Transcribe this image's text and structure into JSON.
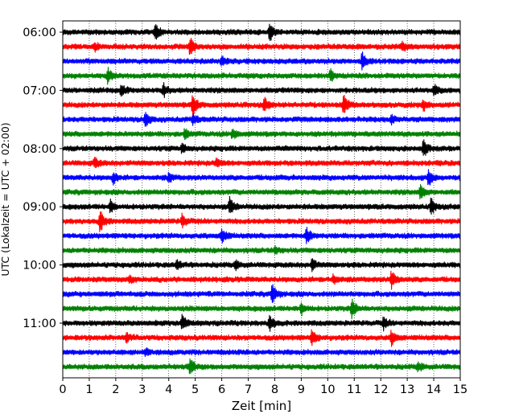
{
  "chart_data": {
    "type": "line",
    "title": "",
    "xlabel": "Zeit  [min]",
    "ylabel": "UTC (Lokalzeit = UTC + 02:00)",
    "xlim": [
      0,
      15
    ],
    "x_ticks": [
      "0",
      "1",
      "2",
      "3",
      "4",
      "5",
      "6",
      "7",
      "8",
      "9",
      "10",
      "11",
      "12",
      "13",
      "14",
      "15"
    ],
    "y_ticks": [
      {
        "label": "06:00",
        "trace": 0
      },
      {
        "label": "07:00",
        "trace": 4
      },
      {
        "label": "08:00",
        "trace": 8
      },
      {
        "label": "09:00",
        "trace": 12
      },
      {
        "label": "10:00",
        "trace": 16
      },
      {
        "label": "11:00",
        "trace": 20
      }
    ],
    "grid": "x-dotted",
    "colors": [
      "#000000",
      "#ff0000",
      "#0000ff",
      "#008000"
    ],
    "traces": [
      {
        "start": "06:00",
        "color": "#000000",
        "events": [
          {
            "t": 3.5,
            "amp": 1.0
          },
          {
            "t": 7.8,
            "amp": 1.1
          }
        ]
      },
      {
        "start": "06:15",
        "color": "#ff0000",
        "events": [
          {
            "t": 1.2,
            "amp": 0.5
          },
          {
            "t": 4.8,
            "amp": 1.0
          },
          {
            "t": 12.8,
            "amp": 0.5
          }
        ]
      },
      {
        "start": "06:30",
        "color": "#0000ff",
        "events": [
          {
            "t": 6.0,
            "amp": 0.5
          },
          {
            "t": 11.3,
            "amp": 1.1
          }
        ]
      },
      {
        "start": "06:45",
        "color": "#008000",
        "events": [
          {
            "t": 1.7,
            "amp": 0.9
          },
          {
            "t": 10.1,
            "amp": 0.6
          }
        ]
      },
      {
        "start": "07:00",
        "color": "#000000",
        "events": [
          {
            "t": 2.2,
            "amp": 0.6
          },
          {
            "t": 3.8,
            "amp": 0.7
          },
          {
            "t": 14.0,
            "amp": 0.6
          }
        ]
      },
      {
        "start": "07:15",
        "color": "#ff0000",
        "events": [
          {
            "t": 4.9,
            "amp": 1.3
          },
          {
            "t": 7.6,
            "amp": 0.8
          },
          {
            "t": 10.6,
            "amp": 1.2
          },
          {
            "t": 13.6,
            "amp": 0.7
          }
        ]
      },
      {
        "start": "07:30",
        "color": "#0000ff",
        "events": [
          {
            "t": 3.1,
            "amp": 1.0
          },
          {
            "t": 4.9,
            "amp": 0.6
          },
          {
            "t": 12.4,
            "amp": 0.5
          }
        ]
      },
      {
        "start": "07:45",
        "color": "#008000",
        "events": [
          {
            "t": 4.6,
            "amp": 0.5
          },
          {
            "t": 6.4,
            "amp": 0.6
          }
        ]
      },
      {
        "start": "08:00",
        "color": "#000000",
        "events": [
          {
            "t": 4.5,
            "amp": 0.5
          },
          {
            "t": 13.6,
            "amp": 1.0
          }
        ]
      },
      {
        "start": "08:15",
        "color": "#ff0000",
        "events": [
          {
            "t": 1.2,
            "amp": 0.6
          },
          {
            "t": 5.8,
            "amp": 0.5
          }
        ]
      },
      {
        "start": "08:30",
        "color": "#0000ff",
        "events": [
          {
            "t": 1.9,
            "amp": 0.6
          },
          {
            "t": 4.0,
            "amp": 0.5
          },
          {
            "t": 13.8,
            "amp": 0.9
          }
        ]
      },
      {
        "start": "08:45",
        "color": "#008000",
        "events": [
          {
            "t": 13.5,
            "amp": 0.8
          }
        ]
      },
      {
        "start": "09:00",
        "color": "#000000",
        "events": [
          {
            "t": 1.8,
            "amp": 0.7
          },
          {
            "t": 6.3,
            "amp": 1.0
          },
          {
            "t": 13.9,
            "amp": 0.9
          }
        ]
      },
      {
        "start": "09:15",
        "color": "#ff0000",
        "events": [
          {
            "t": 1.4,
            "amp": 1.3
          },
          {
            "t": 4.5,
            "amp": 0.7
          }
        ]
      },
      {
        "start": "09:30",
        "color": "#0000ff",
        "events": [
          {
            "t": 6.0,
            "amp": 0.9
          },
          {
            "t": 9.2,
            "amp": 1.0
          }
        ]
      },
      {
        "start": "09:45",
        "color": "#008000",
        "events": [
          {
            "t": 8.0,
            "amp": 0.4
          }
        ]
      },
      {
        "start": "10:00",
        "color": "#000000",
        "events": [
          {
            "t": 4.3,
            "amp": 0.5
          },
          {
            "t": 6.5,
            "amp": 0.5
          },
          {
            "t": 9.4,
            "amp": 0.7
          }
        ]
      },
      {
        "start": "10:15",
        "color": "#ff0000",
        "events": [
          {
            "t": 2.5,
            "amp": 0.4
          },
          {
            "t": 10.2,
            "amp": 0.5
          },
          {
            "t": 12.4,
            "amp": 1.1
          }
        ]
      },
      {
        "start": "10:30",
        "color": "#0000ff",
        "events": [
          {
            "t": 7.9,
            "amp": 1.2
          }
        ]
      },
      {
        "start": "10:45",
        "color": "#008000",
        "events": [
          {
            "t": 9.0,
            "amp": 0.7
          },
          {
            "t": 10.9,
            "amp": 1.1
          }
        ]
      },
      {
        "start": "11:00",
        "color": "#000000",
        "events": [
          {
            "t": 4.5,
            "amp": 0.9
          },
          {
            "t": 7.8,
            "amp": 1.0
          },
          {
            "t": 12.1,
            "amp": 0.6
          }
        ]
      },
      {
        "start": "11:15",
        "color": "#ff0000",
        "events": [
          {
            "t": 2.4,
            "amp": 0.5
          },
          {
            "t": 9.4,
            "amp": 0.9
          },
          {
            "t": 12.4,
            "amp": 0.8
          }
        ]
      },
      {
        "start": "11:30",
        "color": "#0000ff",
        "events": [
          {
            "t": 3.1,
            "amp": 0.4
          }
        ]
      },
      {
        "start": "11:45",
        "color": "#008000",
        "events": [
          {
            "t": 4.8,
            "amp": 0.9
          },
          {
            "t": 13.4,
            "amp": 0.5
          }
        ]
      }
    ]
  }
}
